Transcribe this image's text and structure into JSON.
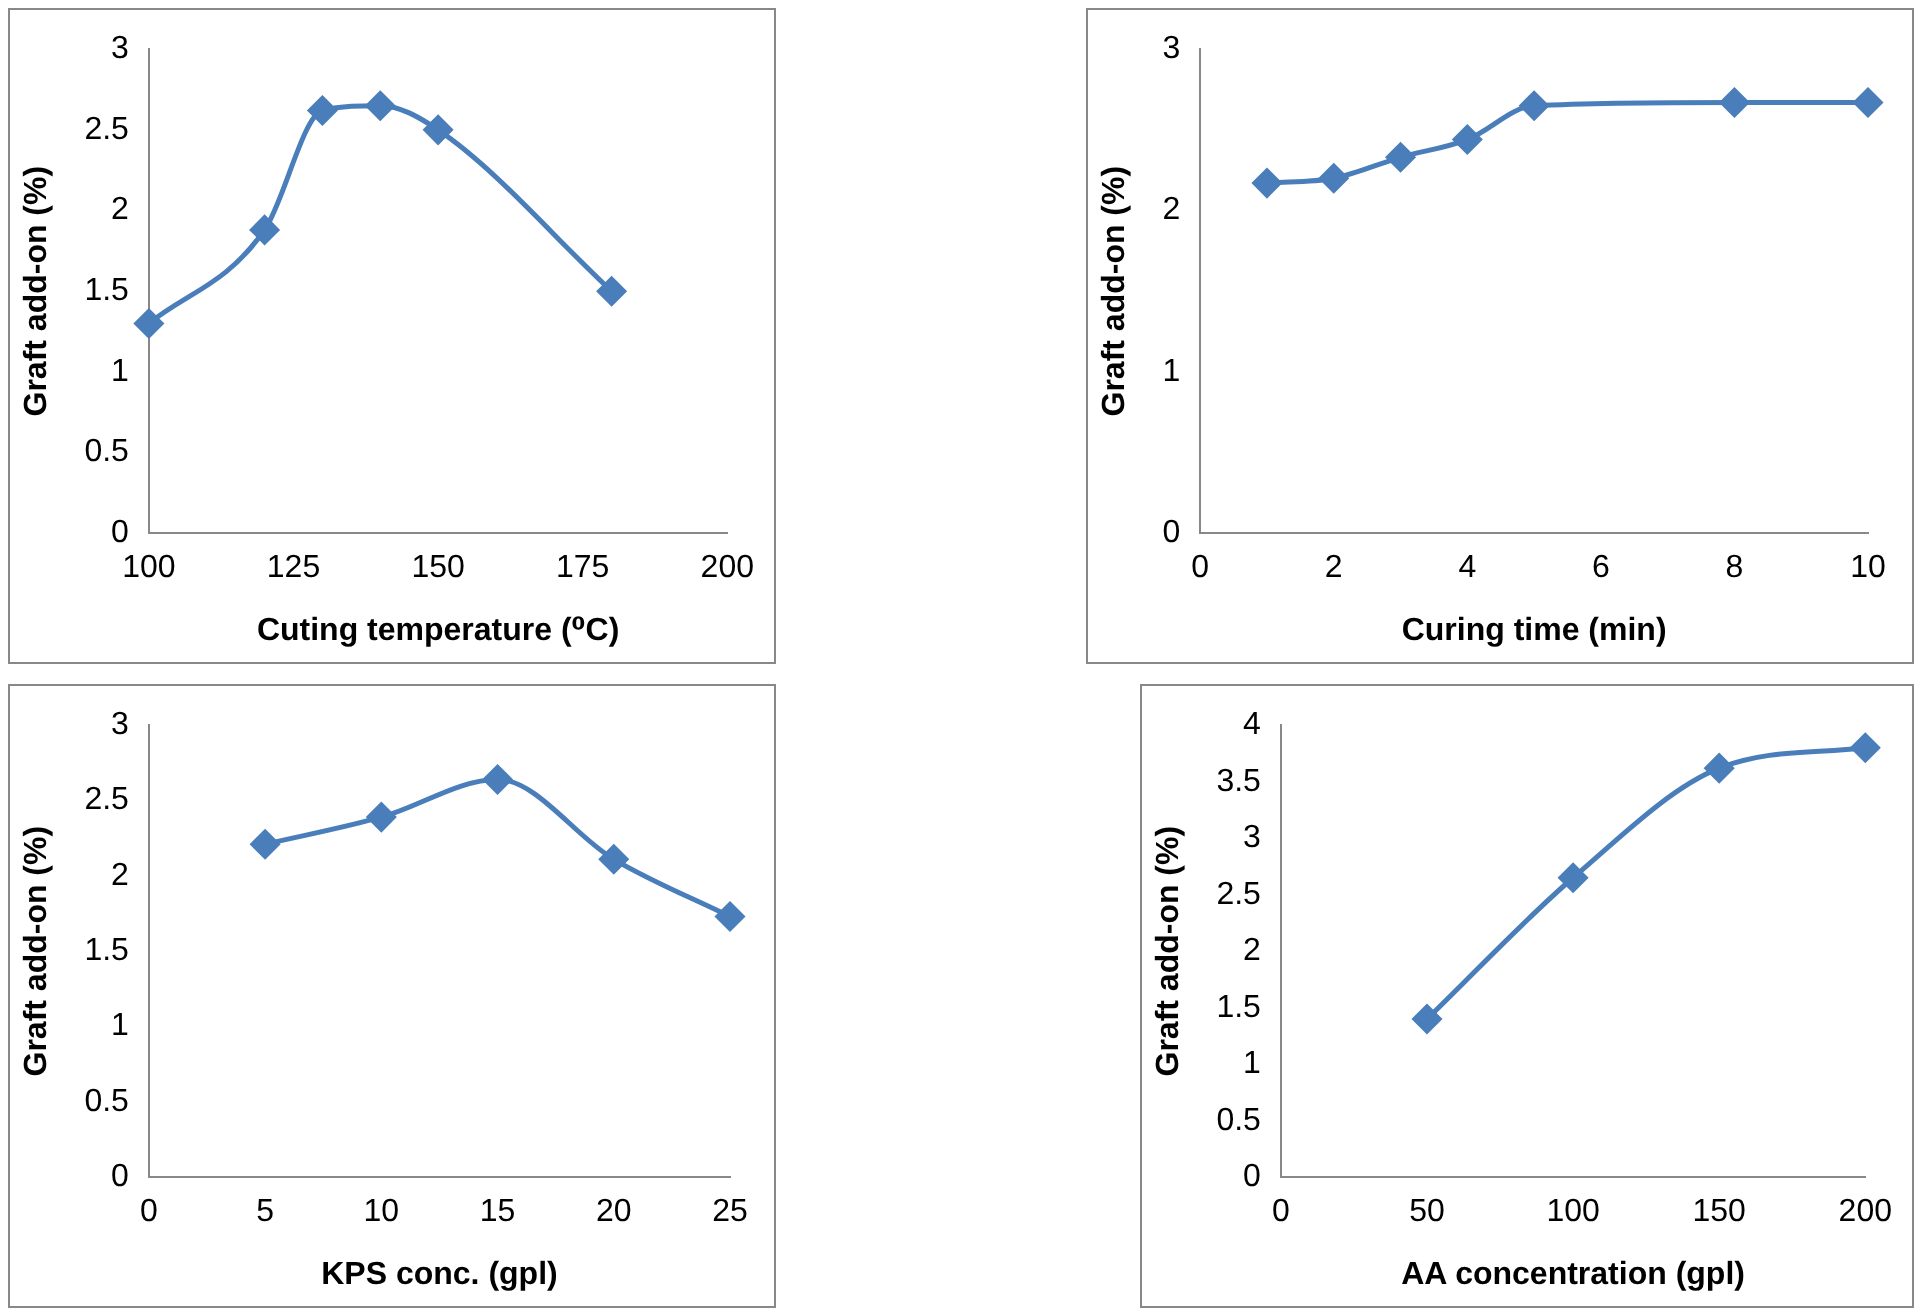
{
  "chart_data": [
    {
      "type": "line",
      "xlabel": "Cuting temperature (⁰C)",
      "ylabel": "Graft add-on (%)",
      "x": [
        100,
        120,
        130,
        140,
        150,
        180
      ],
      "series": [
        {
          "color": "#4a7ebb",
          "values": [
            1.3,
            1.88,
            2.62,
            2.65,
            2.5,
            1.5
          ]
        }
      ],
      "xlim": [
        100,
        200
      ],
      "xticks": [
        100,
        125,
        150,
        175,
        200
      ],
      "ylim": [
        0,
        3
      ],
      "yticks": [
        0,
        0.5,
        1,
        1.5,
        2,
        2.5,
        3
      ],
      "grid": false,
      "legend": false,
      "marker": "diamond",
      "line_style": "solid"
    },
    {
      "type": "line",
      "xlabel": "Curing time (min)",
      "ylabel": "Graft add-on (%)",
      "x": [
        1,
        2,
        3,
        4,
        5,
        8,
        10
      ],
      "series": [
        {
          "color": "#4a7ebb",
          "values": [
            2.17,
            2.2,
            2.33,
            2.44,
            2.65,
            2.67,
            2.67
          ]
        }
      ],
      "xlim": [
        0,
        10
      ],
      "xticks": [
        0,
        2,
        4,
        6,
        8,
        10
      ],
      "ylim": [
        0,
        3
      ],
      "yticks": [
        0,
        1,
        2,
        3
      ],
      "grid": false,
      "legend": false,
      "marker": "diamond",
      "line_style": "solid"
    },
    {
      "type": "line",
      "xlabel": "KPS conc. (gpl)",
      "ylabel": "Graft add-on (%)",
      "x": [
        5,
        10,
        15,
        20,
        25
      ],
      "series": [
        {
          "color": "#4a7ebb",
          "values": [
            2.21,
            2.39,
            2.64,
            2.11,
            1.73
          ]
        }
      ],
      "xlim": [
        0,
        25
      ],
      "xticks": [
        0,
        5,
        10,
        15,
        20,
        25
      ],
      "ylim": [
        0,
        3
      ],
      "yticks": [
        0,
        0.5,
        1,
        1.5,
        2,
        2.5,
        3
      ],
      "grid": false,
      "legend": false,
      "marker": "diamond",
      "line_style": "solid"
    },
    {
      "type": "line",
      "xlabel": "AA concentration (gpl)",
      "ylabel": "Graft add-on (%)",
      "x": [
        50,
        100,
        150,
        200
      ],
      "series": [
        {
          "color": "#4a7ebb",
          "values": [
            1.4,
            2.65,
            3.62,
            3.8
          ]
        }
      ],
      "xlim": [
        0,
        200
      ],
      "xticks": [
        0,
        50,
        100,
        150,
        200
      ],
      "ylim": [
        0,
        4
      ],
      "yticks": [
        0,
        0.5,
        1,
        1.5,
        2,
        2.5,
        3,
        3.5,
        4
      ],
      "grid": false,
      "legend": false,
      "marker": "diamond",
      "line_style": "solid"
    }
  ]
}
